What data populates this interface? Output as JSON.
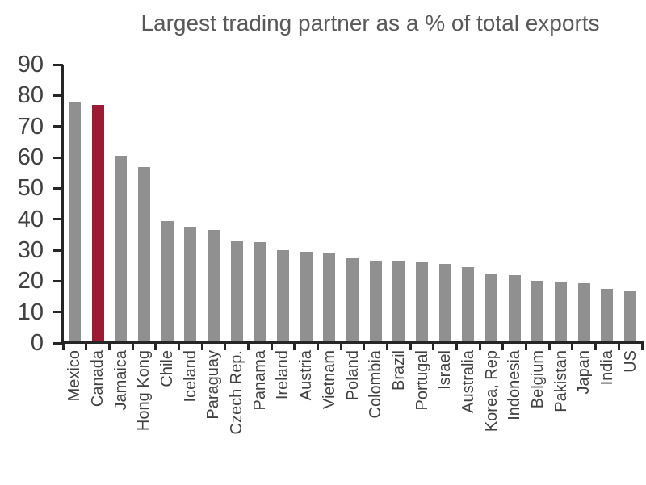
{
  "chart_data": {
    "type": "bar",
    "title": "Largest trading partner as a % of total exports",
    "categories": [
      "Mexico",
      "Canada",
      "Jamaica",
      "Hong Kong",
      "Chile",
      "Iceland",
      "Paraguay",
      "Czech Rep.",
      "Panama",
      "Ireland",
      "Austria",
      "Vietnam",
      "Poland",
      "Colombia",
      "Brazil",
      "Portugal",
      "Israel",
      "Australia",
      "Korea, Rep",
      "Indonesia",
      "Belgium",
      "Pakistan",
      "Japan",
      "India",
      "US"
    ],
    "values": [
      78,
      77,
      60.5,
      57,
      39.5,
      37.5,
      36.5,
      33,
      32.5,
      30,
      29.5,
      29,
      27.5,
      26.5,
      26.5,
      26,
      25.5,
      24.5,
      22.5,
      22,
      20,
      19.8,
      19.2,
      17.5,
      17
    ],
    "highlight_category": "Canada",
    "ylabel": "",
    "xlabel": "",
    "ylim": [
      0,
      90
    ],
    "ytick_step": 10,
    "ytick_labels": [
      "0",
      "10",
      "20",
      "30",
      "40",
      "50",
      "60",
      "70",
      "80",
      "90"
    ],
    "grid": false,
    "legend_position": "none",
    "colors": {
      "bar": "#909090",
      "highlight": "#9C1B33",
      "axis": "#262626",
      "tick_label": "#404040",
      "title": "#595959",
      "background": "#ffffff"
    }
  }
}
